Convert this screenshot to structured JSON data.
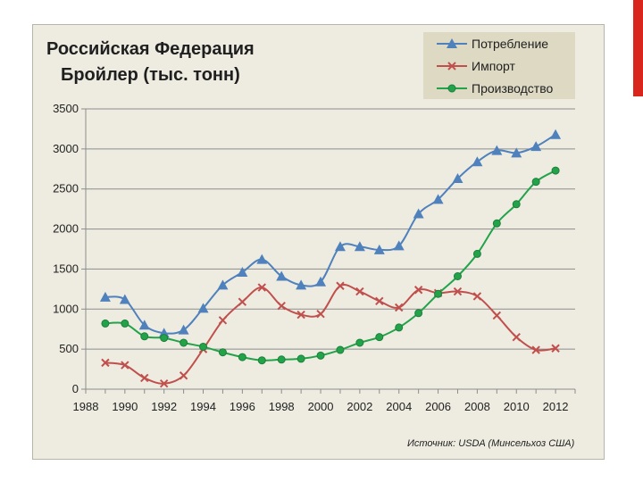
{
  "slide": {
    "title_line1": "Российская Федерация",
    "title_line2": "Бройлер (тыс. тонн)",
    "source": "Источник:  USDA (Минсельхоз США)"
  },
  "colors": {
    "consumption": "#4f81bd",
    "import": "#c0504d",
    "production": "#22a34a",
    "grid": "#8c8c8c",
    "background": "#eeece1",
    "legend_background": "#ddd9c3",
    "accent_bar": "#d9261c"
  },
  "chart_data": {
    "type": "line",
    "title": "Российская Федерация Бройлер (тыс. тонн)",
    "xlim": [
      1988,
      2013
    ],
    "ylim": [
      0,
      3500
    ],
    "x_ticks": [
      1988,
      1990,
      1992,
      1994,
      1996,
      1998,
      2000,
      2002,
      2004,
      2006,
      2008,
      2010,
      2012
    ],
    "y_ticks": [
      0,
      500,
      1000,
      1500,
      2000,
      2500,
      3000,
      3500
    ],
    "grid": "horizontal",
    "legend_position": "top-right",
    "x": [
      1989,
      1990,
      1991,
      1992,
      1993,
      1994,
      1995,
      1996,
      1997,
      1998,
      1999,
      2000,
      2001,
      2002,
      2003,
      2004,
      2005,
      2006,
      2007,
      2008,
      2009,
      2010,
      2011,
      2012
    ],
    "series": [
      {
        "name": "Потребление",
        "marker": "triangle",
        "color": "#4f81bd",
        "values": [
          1150,
          1120,
          800,
          700,
          740,
          1010,
          1300,
          1460,
          1620,
          1410,
          1300,
          1340,
          1780,
          1780,
          1740,
          1790,
          2190,
          2370,
          2630,
          2840,
          2980,
          2950,
          3030,
          3180
        ]
      },
      {
        "name": "Импорт",
        "marker": "x",
        "color": "#c0504d",
        "values": [
          330,
          300,
          140,
          70,
          170,
          500,
          860,
          1090,
          1270,
          1040,
          930,
          940,
          1290,
          1220,
          1100,
          1020,
          1240,
          1200,
          1220,
          1160,
          920,
          650,
          490,
          510
        ]
      },
      {
        "name": "Производство",
        "marker": "circle",
        "color": "#22a34a",
        "values": [
          820,
          820,
          660,
          640,
          580,
          530,
          460,
          400,
          360,
          370,
          380,
          420,
          490,
          580,
          650,
          770,
          950,
          1190,
          1410,
          1690,
          2070,
          2310,
          2590,
          2730
        ]
      }
    ]
  }
}
